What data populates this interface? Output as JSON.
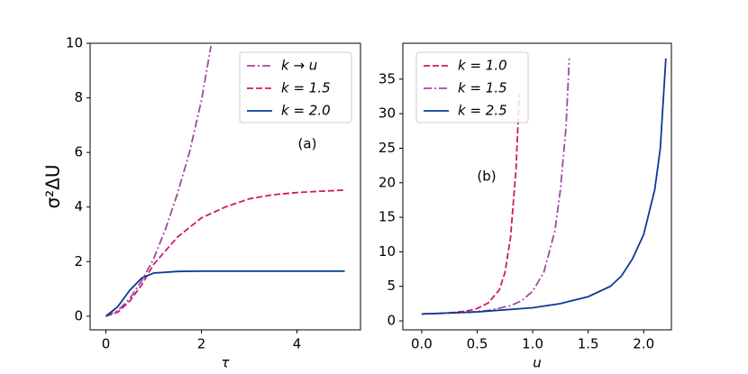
{
  "chart_data": [
    {
      "type": "line",
      "ylabel": "σ²ΔU",
      "xlabel": "τ",
      "annotation": "(a)",
      "xlim": [
        -0.33,
        5.33
      ],
      "ylim": [
        -0.5,
        10
      ],
      "xticks": [
        0,
        2,
        4
      ],
      "yticks": [
        0,
        2,
        4,
        6,
        8,
        10
      ],
      "legend": "upper right",
      "series": [
        {
          "name": "k → u",
          "color": "#a04a9c",
          "linestyle": "dashdot",
          "x": [
            0,
            0.25,
            0.5,
            0.75,
            1,
            1.25,
            1.5,
            1.75,
            2,
            2.2
          ],
          "values": [
            0,
            0.2,
            0.65,
            1.3,
            2.1,
            3.2,
            4.5,
            6.0,
            7.9,
            9.9
          ]
        },
        {
          "name": "k = 1.5",
          "color": "#d0186f",
          "linestyle": "dashed",
          "x": [
            0,
            0.25,
            0.5,
            0.75,
            1,
            1.5,
            2,
            2.5,
            3,
            3.5,
            4,
            4.5,
            5
          ],
          "values": [
            0,
            0.15,
            0.55,
            1.15,
            1.9,
            2.9,
            3.6,
            4.0,
            4.3,
            4.45,
            4.53,
            4.58,
            4.62
          ]
        },
        {
          "name": "k = 2.0",
          "color": "#0b3b96",
          "linestyle": "solid",
          "x": [
            0,
            0.25,
            0.5,
            0.75,
            1,
            1.5,
            2,
            3,
            4,
            5
          ],
          "values": [
            0,
            0.35,
            0.95,
            1.4,
            1.58,
            1.64,
            1.65,
            1.65,
            1.65,
            1.65
          ]
        }
      ]
    },
    {
      "type": "line",
      "xlabel": "u",
      "annotation": "(b)",
      "xlim": [
        -0.17,
        2.25
      ],
      "ylim": [
        -1.3,
        40.2
      ],
      "xticks": [
        {
          "value": 0,
          "label": "0.0"
        },
        0.5,
        {
          "value": 1,
          "label": "1.0"
        },
        1.5,
        {
          "value": 2,
          "label": "2.0"
        }
      ],
      "yticks": [
        0,
        5,
        10,
        15,
        20,
        25,
        30,
        35
      ],
      "legend": "upper left",
      "series": [
        {
          "name": "k = 1.0",
          "color": "#d0186f",
          "linestyle": "dashed",
          "x": [
            0,
            0.2,
            0.4,
            0.5,
            0.6,
            0.7,
            0.75,
            0.8,
            0.85,
            0.88
          ],
          "values": [
            1,
            1.1,
            1.4,
            1.8,
            2.6,
            4.5,
            7,
            12,
            22,
            33
          ]
        },
        {
          "name": "k = 1.5",
          "color": "#a04a9c",
          "linestyle": "dashdot",
          "x": [
            0,
            0.4,
            0.6,
            0.8,
            0.9,
            1.0,
            1.1,
            1.2,
            1.25,
            1.3,
            1.33
          ],
          "values": [
            1,
            1.2,
            1.5,
            2.2,
            2.9,
            4.3,
            7,
            13,
            19,
            28,
            38
          ]
        },
        {
          "name": "k = 2.5",
          "color": "#0b3b96",
          "linestyle": "solid",
          "x": [
            0,
            0.5,
            1.0,
            1.25,
            1.5,
            1.7,
            1.8,
            1.9,
            2.0,
            2.1,
            2.15,
            2.2
          ],
          "values": [
            1,
            1.3,
            1.9,
            2.5,
            3.5,
            5,
            6.5,
            9,
            12.5,
            19,
            25,
            38
          ]
        }
      ]
    }
  ]
}
